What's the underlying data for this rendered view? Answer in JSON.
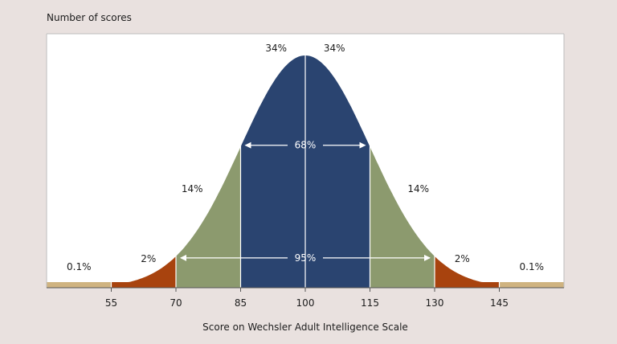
{
  "chart_data": {
    "type": "area",
    "title": "",
    "ylabel": "Number of scores",
    "xlabel": "Score on Wechsler Adult Intelligence Scale",
    "xlim": [
      40,
      160
    ],
    "mean": 100,
    "sd": 15,
    "ticks": [
      "55",
      "70",
      "85",
      "100",
      "115",
      "130",
      "145"
    ],
    "tick_values": [
      55,
      70,
      85,
      100,
      115,
      130,
      145
    ],
    "grid": true,
    "regions": [
      {
        "from": 40,
        "to": 55,
        "percent": "0.1%",
        "color": "#cfb380"
      },
      {
        "from": 55,
        "to": 70,
        "percent": "2%",
        "color": "#a8430e"
      },
      {
        "from": 70,
        "to": 85,
        "percent": "14%",
        "color": "#8c9a6e"
      },
      {
        "from": 85,
        "to": 100,
        "percent": "34%",
        "color": "#2a4470"
      },
      {
        "from": 100,
        "to": 115,
        "percent": "34%",
        "color": "#2a4470"
      },
      {
        "from": 115,
        "to": 130,
        "percent": "14%",
        "color": "#8c9a6e"
      },
      {
        "from": 130,
        "to": 145,
        "percent": "2%",
        "color": "#a8430e"
      },
      {
        "from": 145,
        "to": 160,
        "percent": "0.1%",
        "color": "#cfb380"
      }
    ],
    "spans": [
      {
        "from": 85,
        "to": 115,
        "percent": "68%"
      },
      {
        "from": 70,
        "to": 130,
        "percent": "95%"
      }
    ]
  }
}
